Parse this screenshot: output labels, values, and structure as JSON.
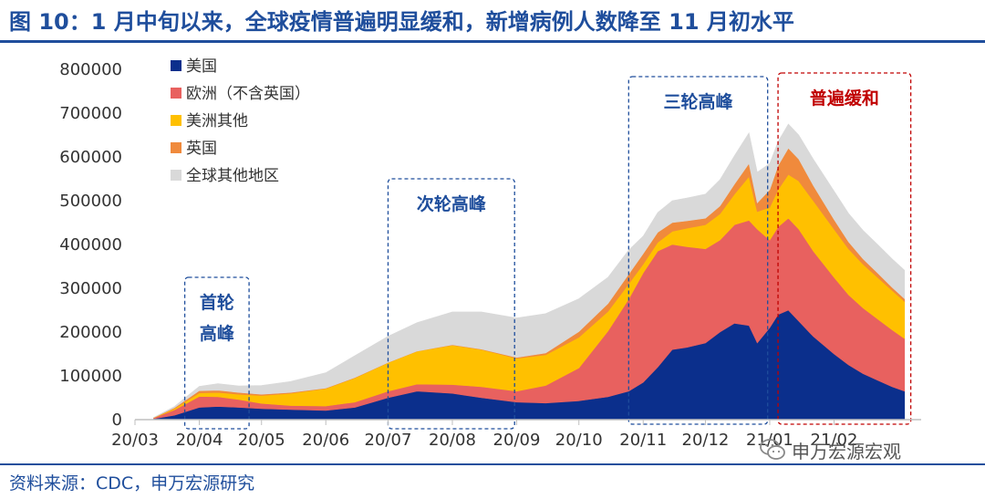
{
  "figure": {
    "title": "图 10：1 月中旬以来，全球疫情普遍明显缓和，新增病例人数降至 11 月初水平",
    "source": "资料来源：CDC，申万宏源研究",
    "watermark": "申万宏源宏观",
    "watermark_icon": "wechat-icon",
    "accent_color": "#1f4e9c"
  },
  "chart_data": {
    "type": "area",
    "stacked": true,
    "title": "",
    "xlabel": "",
    "ylabel": "",
    "ylim": [
      0,
      800000
    ],
    "yticks": [
      0,
      100000,
      200000,
      300000,
      400000,
      500000,
      600000,
      700000,
      800000
    ],
    "xlim": [
      "2020-03-01",
      "2021-03-15"
    ],
    "xticks": [
      {
        "label": "20/03",
        "date": "2020-03-01"
      },
      {
        "label": "20/04",
        "date": "2020-04-01"
      },
      {
        "label": "20/05",
        "date": "2020-05-01"
      },
      {
        "label": "20/06",
        "date": "2020-06-01"
      },
      {
        "label": "20/07",
        "date": "2020-07-01"
      },
      {
        "label": "20/08",
        "date": "2020-08-01"
      },
      {
        "label": "20/09",
        "date": "2020-09-01"
      },
      {
        "label": "20/10",
        "date": "2020-10-01"
      },
      {
        "label": "20/11",
        "date": "2020-11-01"
      },
      {
        "label": "20/12",
        "date": "2020-12-01"
      },
      {
        "label": "21/01",
        "date": "2021-01-01"
      },
      {
        "label": "21/02",
        "date": "2021-02-01"
      }
    ],
    "grid": false,
    "legend_position": "top-left",
    "x": [
      "2020-03-10",
      "2020-03-20",
      "2020-04-01",
      "2020-04-10",
      "2020-04-20",
      "2020-05-01",
      "2020-05-15",
      "2020-06-01",
      "2020-06-15",
      "2020-07-01",
      "2020-07-15",
      "2020-08-01",
      "2020-08-15",
      "2020-09-01",
      "2020-09-15",
      "2020-10-01",
      "2020-10-15",
      "2020-10-25",
      "2020-11-01",
      "2020-11-08",
      "2020-11-15",
      "2020-11-22",
      "2020-12-01",
      "2020-12-08",
      "2020-12-15",
      "2020-12-22",
      "2020-12-26",
      "2021-01-01",
      "2021-01-05",
      "2021-01-10",
      "2021-01-15",
      "2021-01-22",
      "2021-02-01",
      "2021-02-08",
      "2021-02-15",
      "2021-02-22",
      "2021-03-01",
      "2021-03-07"
    ],
    "series": [
      {
        "name": "美国",
        "color": "#0b2f8c",
        "values": [
          2000,
          10000,
          28000,
          30000,
          28000,
          25000,
          23000,
          21000,
          28000,
          50000,
          65000,
          60000,
          50000,
          40000,
          38000,
          43000,
          52000,
          65000,
          85000,
          120000,
          160000,
          165000,
          175000,
          200000,
          220000,
          215000,
          175000,
          210000,
          240000,
          250000,
          225000,
          190000,
          150000,
          125000,
          105000,
          90000,
          75000,
          65000
        ]
      },
      {
        "name": "欧洲（不含英国）",
        "color": "#e8615f",
        "values": [
          2000,
          12000,
          25000,
          22000,
          18000,
          12000,
          9000,
          10000,
          12000,
          15000,
          16000,
          20000,
          25000,
          25000,
          40000,
          75000,
          150000,
          210000,
          250000,
          265000,
          240000,
          230000,
          215000,
          210000,
          225000,
          240000,
          260000,
          200000,
          200000,
          210000,
          210000,
          195000,
          175000,
          160000,
          150000,
          140000,
          130000,
          120000
        ]
      },
      {
        "name": "美洲其他",
        "color": "#ffc000",
        "values": [
          500,
          3000,
          8000,
          10000,
          12000,
          18000,
          28000,
          40000,
          55000,
          65000,
          75000,
          90000,
          85000,
          75000,
          70000,
          70000,
          45000,
          35000,
          20000,
          20000,
          30000,
          42000,
          55000,
          60000,
          70000,
          100000,
          40000,
          75000,
          85000,
          100000,
          110000,
          115000,
          110000,
          105000,
          100000,
          95000,
          90000,
          85000
        ]
      },
      {
        "name": "英国",
        "color": "#f08a3c",
        "values": [
          0,
          2000,
          5000,
          5000,
          4000,
          3000,
          2000,
          1000,
          1000,
          500,
          500,
          1000,
          1000,
          2000,
          4000,
          13000,
          18000,
          22000,
          24000,
          23000,
          20000,
          17000,
          15000,
          18000,
          23000,
          30000,
          20000,
          40000,
          55000,
          60000,
          50000,
          35000,
          22000,
          16000,
          12000,
          10000,
          7000,
          6000
        ]
      },
      {
        "name": "全球其他地区",
        "color": "#d9d9d9",
        "values": [
          500,
          3000,
          10000,
          15000,
          15000,
          20000,
          25000,
          35000,
          50000,
          60000,
          65000,
          75000,
          85000,
          90000,
          90000,
          75000,
          60000,
          55000,
          40000,
          45000,
          50000,
          52000,
          55000,
          60000,
          65000,
          70000,
          70000,
          60000,
          55000,
          55000,
          55000,
          60000,
          65000,
          65000,
          65000,
          65000,
          65000,
          65000
        ]
      }
    ],
    "annotations": [
      {
        "text": "首轮高峰",
        "lines": [
          "首轮",
          "高峰"
        ],
        "from": "2020-03-25",
        "to": "2020-04-25",
        "color": "#1f4e9c",
        "style": "dashed"
      },
      {
        "text": "次轮高峰",
        "lines": [
          "次轮高峰"
        ],
        "from": "2020-07-01",
        "to": "2020-08-31",
        "color": "#1f4e9c",
        "style": "dashed"
      },
      {
        "text": "三轮高峰",
        "lines": [
          "三轮高峰"
        ],
        "from": "2020-10-25",
        "to": "2020-12-31",
        "color": "#1f4e9c",
        "style": "dashed"
      },
      {
        "text": "普遍缓和",
        "lines": [
          "普遍缓和"
        ],
        "from": "2021-01-05",
        "to": "2021-03-10",
        "color": "#c00000",
        "style": "dashed"
      }
    ]
  }
}
